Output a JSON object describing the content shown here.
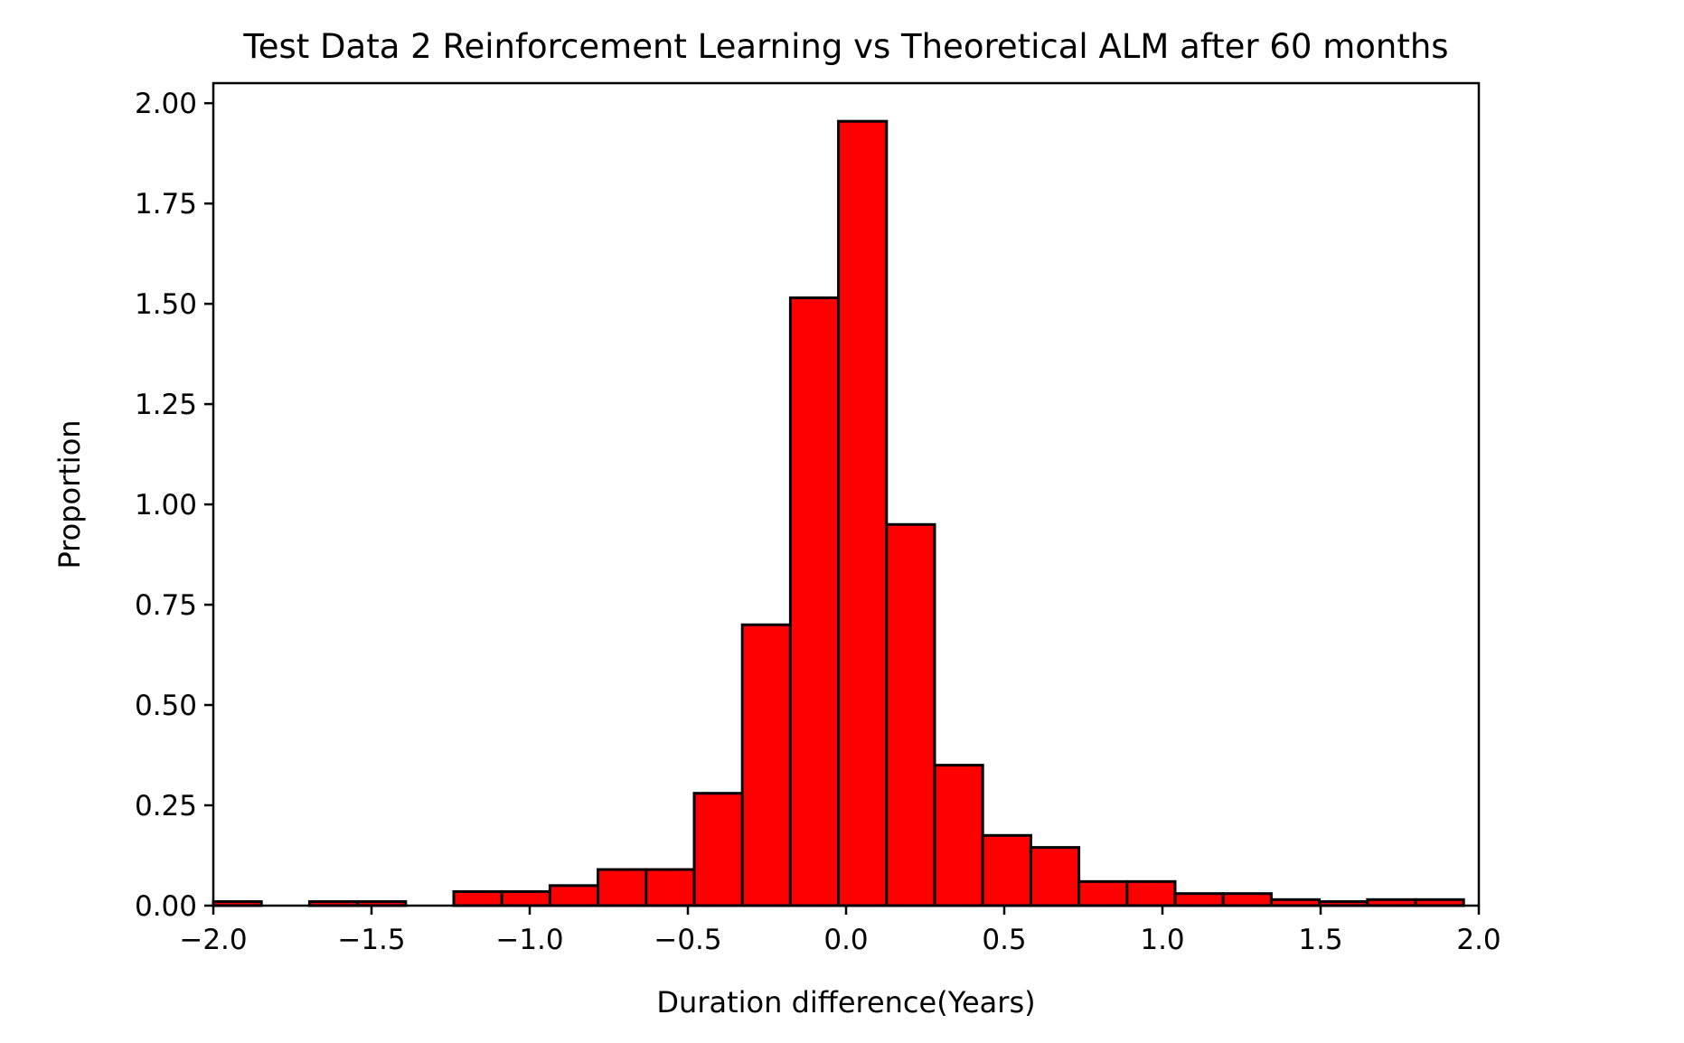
{
  "chart_data": {
    "type": "bar",
    "title": "Test Data 2 Reinforcement Learning vs Theoretical ALM after 60 months",
    "xlabel": "Duration difference(Years)",
    "ylabel": "Proportion",
    "xlim": [
      -2.0,
      2.0
    ],
    "ylim": [
      0.0,
      2.05
    ],
    "x_ticks": [
      "−2.0",
      "−1.5",
      "−1.0",
      "−0.5",
      "0.0",
      "0.5",
      "1.0",
      "1.5",
      "2.0"
    ],
    "x_tick_values": [
      -2.0,
      -1.5,
      -1.0,
      -0.5,
      0.0,
      0.5,
      1.0,
      1.5,
      2.0
    ],
    "y_ticks": [
      "0.00",
      "0.25",
      "0.50",
      "0.75",
      "1.00",
      "1.25",
      "1.50",
      "1.75",
      "2.00"
    ],
    "y_tick_values": [
      0.0,
      0.25,
      0.5,
      0.75,
      1.0,
      1.25,
      1.5,
      1.75,
      2.0
    ],
    "bar_color": "#ff0000",
    "edge_color": "#000000",
    "bins_left": [
      -2.0,
      -1.848,
      -1.696,
      -1.544,
      -1.392,
      -1.24,
      -1.088,
      -0.936,
      -0.784,
      -0.632,
      -0.48,
      -0.328,
      -0.176,
      -0.024,
      0.128,
      0.28,
      0.432,
      0.584,
      0.736,
      0.888,
      1.04,
      1.192,
      1.344,
      1.496,
      1.648,
      1.8
    ],
    "bin_width": 0.152,
    "values": [
      0.01,
      0.0,
      0.01,
      0.01,
      0.0,
      0.035,
      0.035,
      0.05,
      0.09,
      0.09,
      0.28,
      0.7,
      1.515,
      1.955,
      0.95,
      0.35,
      0.175,
      0.145,
      0.06,
      0.06,
      0.03,
      0.03,
      0.015,
      0.01,
      0.015,
      0.015
    ],
    "grid": false,
    "legend": "none"
  }
}
